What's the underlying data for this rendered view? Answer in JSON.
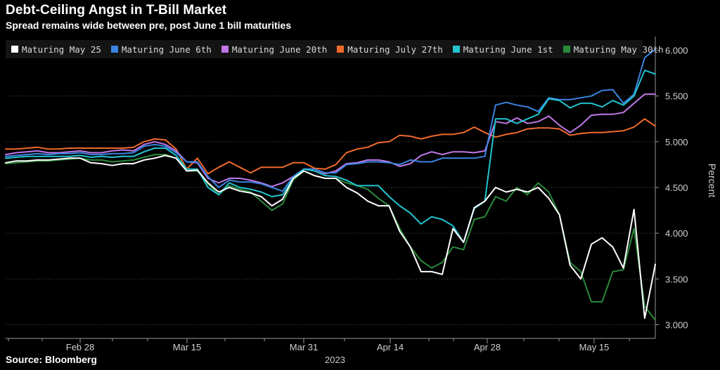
{
  "title": "Debt-Ceiling Angst in T-Bill Market",
  "subtitle": "Spread remains wide between pre, post June 1 bill maturities",
  "source": "Source: Bloomberg",
  "chart_data": {
    "type": "line",
    "x_tick_labels": [
      "Feb 28",
      "Mar 15",
      "Mar 31",
      "Apr 14",
      "Apr 28",
      "May 15"
    ],
    "x_axis_year": "2023",
    "ylabel": "Percent",
    "y_tick_labels": [
      "3.000",
      "3.500",
      "4.000",
      "4.500",
      "5.000",
      "5.500",
      "6.000"
    ],
    "ylim": [
      2.85,
      6.15
    ],
    "y_axis_position": "right",
    "grid": "horizontal dotted",
    "legend_position": "top",
    "x_range_note": "daily observations, roughly Feb 22 to May 23 2023",
    "series": [
      {
        "name": "Maturing May 25",
        "color": "#ffffff",
        "values": [
          4.77,
          4.79,
          4.79,
          4.8,
          4.8,
          4.81,
          4.82,
          4.82,
          4.77,
          4.76,
          4.74,
          4.76,
          4.76,
          4.8,
          4.82,
          4.85,
          4.82,
          4.68,
          4.69,
          4.55,
          4.45,
          4.5,
          4.46,
          4.44,
          4.4,
          4.3,
          4.37,
          4.6,
          4.68,
          4.63,
          4.6,
          4.6,
          4.5,
          4.44,
          4.35,
          4.3,
          4.3,
          4.02,
          3.85,
          3.58,
          3.58,
          3.55,
          4.05,
          3.9,
          4.28,
          4.35,
          4.5,
          4.45,
          4.48,
          4.45,
          4.5,
          4.38,
          4.2,
          3.65,
          3.5,
          3.88,
          3.95,
          3.85,
          3.62,
          4.26,
          3.07,
          3.66
        ]
      },
      {
        "name": "Maturing June 6th",
        "color": "#3b84e0",
        "values": [
          4.84,
          4.85,
          4.86,
          4.87,
          4.86,
          4.87,
          4.87,
          4.88,
          4.86,
          4.86,
          4.87,
          4.87,
          4.88,
          4.95,
          4.97,
          4.95,
          4.88,
          4.78,
          4.78,
          4.62,
          4.5,
          4.58,
          4.56,
          4.56,
          4.54,
          4.5,
          4.46,
          4.62,
          4.7,
          4.7,
          4.66,
          4.66,
          4.75,
          4.76,
          4.78,
          4.78,
          4.77,
          4.75,
          4.8,
          4.78,
          4.78,
          4.82,
          4.82,
          4.82,
          4.82,
          4.84,
          5.4,
          5.43,
          5.4,
          5.38,
          5.33,
          5.48,
          5.46,
          5.46,
          5.48,
          5.5,
          5.56,
          5.57,
          5.42,
          5.52,
          5.92,
          6.01
        ]
      },
      {
        "name": "Maturing June 20th",
        "color": "#c078e6",
        "values": [
          4.86,
          4.88,
          4.89,
          4.9,
          4.88,
          4.88,
          4.89,
          4.9,
          4.88,
          4.88,
          4.9,
          4.91,
          4.9,
          4.97,
          5.0,
          4.97,
          4.9,
          4.78,
          4.77,
          4.6,
          4.55,
          4.6,
          4.6,
          4.58,
          4.55,
          4.51,
          4.55,
          4.62,
          4.7,
          4.7,
          4.65,
          4.68,
          4.76,
          4.77,
          4.8,
          4.8,
          4.78,
          4.73,
          4.76,
          4.85,
          4.89,
          4.86,
          4.89,
          4.89,
          4.88,
          4.9,
          5.22,
          5.2,
          5.26,
          5.2,
          5.22,
          5.28,
          5.18,
          5.1,
          5.18,
          5.29,
          5.3,
          5.3,
          5.32,
          5.42,
          5.52,
          5.52
        ]
      },
      {
        "name": "Maturing July 27th",
        "color": "#ef6a2b",
        "values": [
          4.92,
          4.92,
          4.93,
          4.94,
          4.92,
          4.92,
          4.93,
          4.93,
          4.93,
          4.93,
          4.93,
          4.93,
          4.94,
          5.0,
          5.03,
          5.02,
          4.92,
          4.7,
          4.82,
          4.65,
          4.72,
          4.78,
          4.72,
          4.66,
          4.72,
          4.72,
          4.72,
          4.77,
          4.77,
          4.71,
          4.7,
          4.75,
          4.88,
          4.92,
          4.94,
          4.99,
          5.0,
          5.07,
          5.06,
          5.03,
          5.06,
          5.08,
          5.08,
          5.1,
          5.16,
          5.1,
          5.05,
          5.08,
          5.1,
          5.14,
          5.15,
          5.15,
          5.14,
          5.07,
          5.09,
          5.1,
          5.1,
          5.11,
          5.12,
          5.16,
          5.25,
          5.17
        ]
      },
      {
        "name": "Maturing June 1st",
        "color": "#22c4d0",
        "values": [
          4.82,
          4.83,
          4.84,
          4.84,
          4.84,
          4.84,
          4.84,
          4.85,
          4.83,
          4.84,
          4.83,
          4.84,
          4.84,
          4.89,
          4.93,
          4.93,
          4.85,
          4.7,
          4.7,
          4.5,
          4.42,
          4.55,
          4.5,
          4.48,
          4.45,
          4.4,
          4.42,
          4.6,
          4.7,
          4.68,
          4.63,
          4.62,
          4.58,
          4.52,
          4.52,
          4.52,
          4.4,
          4.3,
          4.22,
          4.1,
          4.18,
          4.15,
          4.08,
          3.9,
          4.27,
          4.35,
          5.25,
          5.25,
          5.2,
          5.25,
          5.3,
          5.47,
          5.45,
          5.37,
          5.42,
          5.42,
          5.38,
          5.45,
          5.4,
          5.5,
          5.78,
          5.74
        ]
      },
      {
        "name": "Maturing May 30th",
        "color": "#2a8a3a",
        "values": [
          4.76,
          4.77,
          4.78,
          4.79,
          4.79,
          4.8,
          4.81,
          4.82,
          4.8,
          4.8,
          4.78,
          4.79,
          4.8,
          4.83,
          4.86,
          4.86,
          4.82,
          4.68,
          4.68,
          4.54,
          4.42,
          4.52,
          4.48,
          4.45,
          4.35,
          4.25,
          4.32,
          4.58,
          4.68,
          4.63,
          4.6,
          4.6,
          4.55,
          4.52,
          4.48,
          4.38,
          4.3,
          4.05,
          3.85,
          3.7,
          3.62,
          3.68,
          3.85,
          3.82,
          4.15,
          4.18,
          4.4,
          4.35,
          4.5,
          4.42,
          4.55,
          4.45,
          4.2,
          3.68,
          3.58,
          3.25,
          3.25,
          3.58,
          3.6,
          4.05,
          3.2,
          3.05
        ]
      }
    ]
  }
}
